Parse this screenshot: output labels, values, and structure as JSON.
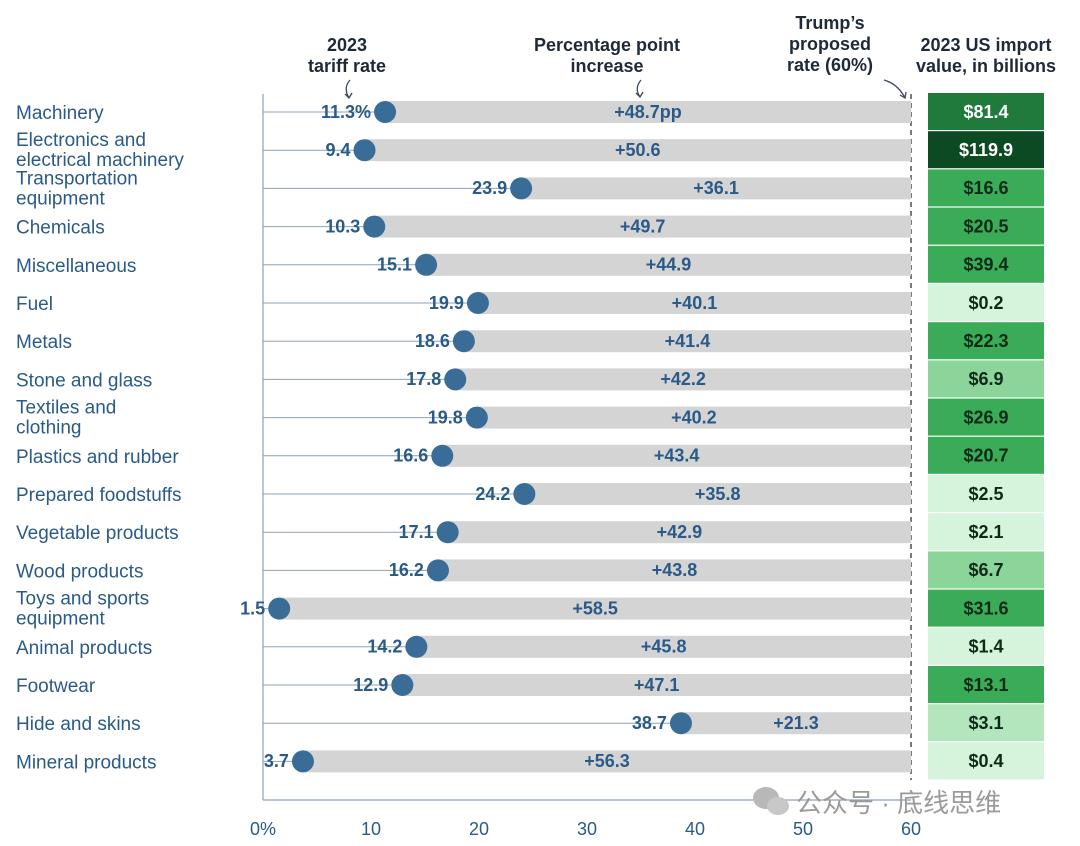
{
  "chart_data": {
    "type": "bar",
    "subtype": "horizontal-dumbbell-range",
    "headers": {
      "tariff_rate": [
        "2023",
        "tariff rate"
      ],
      "pp_increase": [
        "Percentage point",
        "increase"
      ],
      "proposed": [
        "Trump’s",
        "proposed",
        "rate (60%)"
      ],
      "import_value": [
        "2023 US import",
        "value, in billions"
      ]
    },
    "xlim": [
      0,
      60
    ],
    "x_ticks": [
      0,
      10,
      20,
      30,
      40,
      50,
      60
    ],
    "x_tick_labels": [
      "0%",
      "10",
      "20",
      "30",
      "40",
      "50",
      "60"
    ],
    "proposed_rate": 60,
    "categories": [
      {
        "label": [
          "Machinery"
        ],
        "rate": 11.3,
        "rate_label": "11.3%",
        "increase_label": "+48.7pp",
        "import_label": "$81.4",
        "import_value": 81.4
      },
      {
        "label": [
          "Electronics and",
          "electrical machinery"
        ],
        "rate": 9.4,
        "rate_label": "9.4",
        "increase_label": "+50.6",
        "import_label": "$119.9",
        "import_value": 119.9
      },
      {
        "label": [
          "Transportation",
          "equipment"
        ],
        "rate": 23.9,
        "rate_label": "23.9",
        "increase_label": "+36.1",
        "import_label": "$16.6",
        "import_value": 16.6
      },
      {
        "label": [
          "Chemicals"
        ],
        "rate": 10.3,
        "rate_label": "10.3",
        "increase_label": "+49.7",
        "import_label": "$20.5",
        "import_value": 20.5
      },
      {
        "label": [
          "Miscellaneous"
        ],
        "rate": 15.1,
        "rate_label": "15.1",
        "increase_label": "+44.9",
        "import_label": "$39.4",
        "import_value": 39.4
      },
      {
        "label": [
          "Fuel"
        ],
        "rate": 19.9,
        "rate_label": "19.9",
        "increase_label": "+40.1",
        "import_label": "$0.2",
        "import_value": 0.2
      },
      {
        "label": [
          "Metals"
        ],
        "rate": 18.6,
        "rate_label": "18.6",
        "increase_label": "+41.4",
        "import_label": "$22.3",
        "import_value": 22.3
      },
      {
        "label": [
          "Stone and glass"
        ],
        "rate": 17.8,
        "rate_label": "17.8",
        "increase_label": "+42.2",
        "import_label": "$6.9",
        "import_value": 6.9
      },
      {
        "label": [
          "Textiles and",
          "clothing"
        ],
        "rate": 19.8,
        "rate_label": "19.8",
        "increase_label": "+40.2",
        "import_label": "$26.9",
        "import_value": 26.9
      },
      {
        "label": [
          "Plastics and rubber"
        ],
        "rate": 16.6,
        "rate_label": "16.6",
        "increase_label": "+43.4",
        "import_label": "$20.7",
        "import_value": 20.7
      },
      {
        "label": [
          "Prepared foodstuffs"
        ],
        "rate": 24.2,
        "rate_label": "24.2",
        "increase_label": "+35.8",
        "import_label": "$2.5",
        "import_value": 2.5
      },
      {
        "label": [
          "Vegetable products"
        ],
        "rate": 17.1,
        "rate_label": "17.1",
        "increase_label": "+42.9",
        "import_label": "$2.1",
        "import_value": 2.1
      },
      {
        "label": [
          "Wood products"
        ],
        "rate": 16.2,
        "rate_label": "16.2",
        "increase_label": "+43.8",
        "import_label": "$6.7",
        "import_value": 6.7
      },
      {
        "label": [
          "Toys and sports",
          "equipment"
        ],
        "rate": 1.5,
        "rate_label": "1.5",
        "increase_label": "+58.5",
        "import_label": "$31.6",
        "import_value": 31.6
      },
      {
        "label": [
          "Animal products"
        ],
        "rate": 14.2,
        "rate_label": "14.2",
        "increase_label": "+45.8",
        "import_label": "$1.4",
        "import_value": 1.4
      },
      {
        "label": [
          "Footwear"
        ],
        "rate": 12.9,
        "rate_label": "12.9",
        "increase_label": "+47.1",
        "import_label": "$13.1",
        "import_value": 13.1
      },
      {
        "label": [
          "Hide and skins"
        ],
        "rate": 38.7,
        "rate_label": "38.7",
        "increase_label": "+21.3",
        "import_label": "$3.1",
        "import_value": 3.1
      },
      {
        "label": [
          "Mineral products"
        ],
        "rate": 3.7,
        "rate_label": "3.7",
        "increase_label": "+56.3",
        "import_label": "$0.4",
        "import_value": 0.4
      }
    ],
    "colors": {
      "dot": "#3a6c98",
      "bar": "#d4d4d4",
      "label_text": "#2a5a88",
      "header_text": "#1e2a38",
      "axis": "#8aa4bc"
    },
    "import_color_scale": [
      {
        "min": 100,
        "fill": "#0b4a22",
        "text": "#ffffff"
      },
      {
        "min": 60,
        "fill": "#1f7a3c",
        "text": "#ffffff"
      },
      {
        "min": 13,
        "fill": "#3aac58",
        "text": "#0d2a18"
      },
      {
        "min": 6.5,
        "fill": "#8bd49a",
        "text": "#0d2a18"
      },
      {
        "min": 3,
        "fill": "#b3e6bd",
        "text": "#0d2a18"
      },
      {
        "min": 0,
        "fill": "#d6f4dc",
        "text": "#0d2a18"
      }
    ]
  },
  "watermark": "公众号 · 底线思维"
}
